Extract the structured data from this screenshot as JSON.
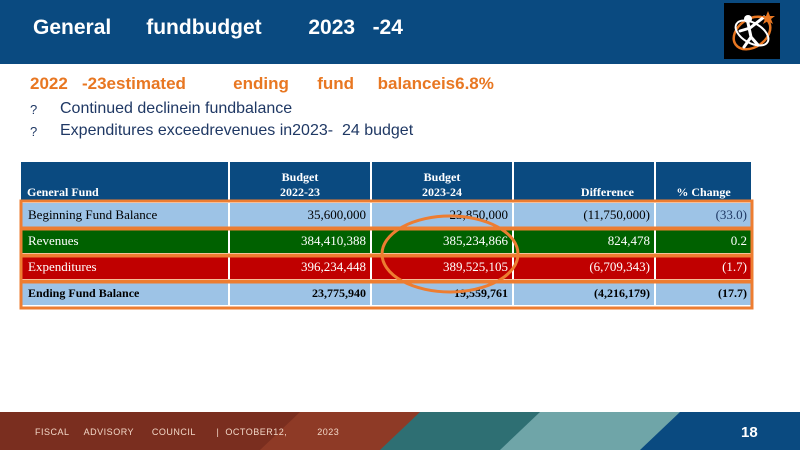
{
  "header": {
    "title": "General      fundbudget        2023   -24"
  },
  "summary": {
    "headline": "2022   -23estimated          ending      fund     balanceis6.8%",
    "bullets": [
      {
        "marker": "?",
        "text": "Continued declinein fundbalance"
      },
      {
        "marker": "?",
        "text": "Expenditures exceedrevenues in2023-  24 budget"
      }
    ]
  },
  "table": {
    "headers": {
      "col0": "General   Fund",
      "col1_line1": "Budget",
      "col1_line2": "2022-23",
      "col2_line1": "Budget",
      "col2_line2": "2023-24",
      "col3": "Difference",
      "col4": "% Change"
    },
    "rows": [
      {
        "label": "Beginning Fund Balance",
        "budget_2022_23": "35,600,000",
        "budget_2023_24": "23,850,000",
        "difference": "(11,750,000)",
        "pct_change": "(33.0)"
      },
      {
        "label": "Revenues",
        "budget_2022_23": "384,410,388",
        "budget_2023_24": "385,234,866",
        "difference": "824,478",
        "pct_change": "0.2"
      },
      {
        "label": "Expenditures",
        "budget_2022_23": "396,234,448",
        "budget_2023_24": "389,525,105",
        "difference": "(6,709,343)",
        "pct_change": "(1.7)"
      },
      {
        "label": "Ending   Fund   Balance",
        "budget_2022_23": "23,775,940",
        "budget_2023_24": "19,559,761",
        "difference": "(4,216,179)",
        "pct_change": "(17.7)"
      }
    ]
  },
  "footer": {
    "text": "FISCAL     ADVISORY      COUNCIL       |  OCTOBER12,          2023",
    "page_number": "18"
  },
  "colors": {
    "header_bg": "#0a4a80",
    "accent_orange": "#e87722",
    "revenues_green": "#006100",
    "expenditures_red": "#c00000",
    "balance_blue": "#9dc3e6"
  },
  "icons": {
    "logo": "star-person-logo-icon"
  }
}
